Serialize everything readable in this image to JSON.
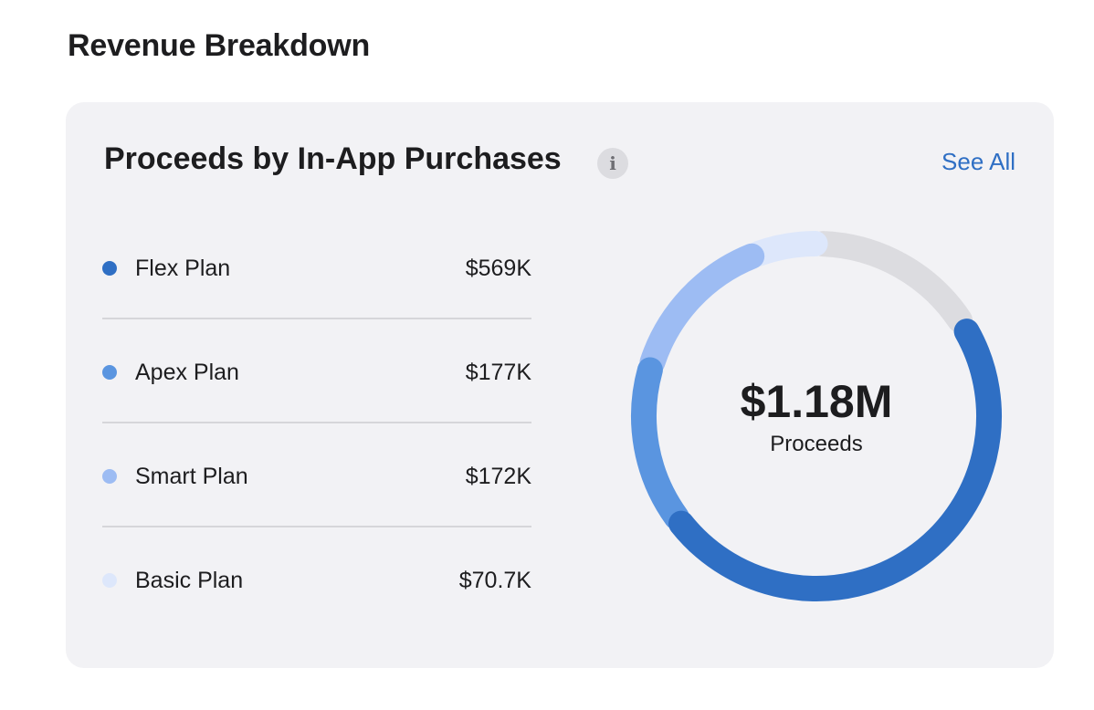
{
  "page": {
    "title": "Revenue Breakdown"
  },
  "card": {
    "title": "Proceeds by In-App Purchases",
    "info_icon": "info-icon",
    "see_all_label": "See All"
  },
  "legend": [
    {
      "label": "Flex Plan",
      "value": "$569K",
      "color": "#2f6fc4"
    },
    {
      "label": "Apex Plan",
      "value": "$177K",
      "color": "#5a95e0"
    },
    {
      "label": "Smart Plan",
      "value": "$172K",
      "color": "#9dbcf3"
    },
    {
      "label": "Basic Plan",
      "value": "$70.7K",
      "color": "#dde7fb"
    }
  ],
  "donut": {
    "total": "$1.18M",
    "sublabel": "Proceeds"
  },
  "chart_data": {
    "type": "pie",
    "categories": [
      "Flex Plan",
      "Apex Plan",
      "Smart Plan",
      "Basic Plan"
    ],
    "values": [
      569,
      177,
      172,
      70.7
    ],
    "unit": "K",
    "colors": [
      "#2f6fc4",
      "#5a95e0",
      "#9dbcf3",
      "#dde7fb"
    ],
    "total": 1180,
    "remainder_color": "#dcdce0",
    "center_text": "$1.18M",
    "center_subtext": "Proceeds",
    "legend_position": "left"
  }
}
